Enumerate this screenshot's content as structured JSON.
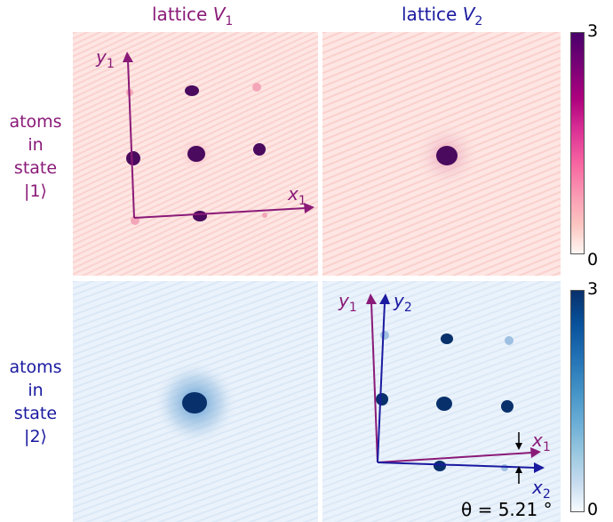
{
  "columns": [
    {
      "prefix": "lattice ",
      "var": "V",
      "sub": "1",
      "color": "#8a1a78"
    },
    {
      "prefix": "lattice ",
      "var": "V",
      "sub": "2",
      "color": "#1a1aa0"
    }
  ],
  "rows": [
    {
      "lines": [
        "atoms",
        "in",
        "state",
        "|1⟩"
      ],
      "color": "#8a1a78"
    },
    {
      "lines": [
        "atoms",
        "in",
        "state",
        "|2⟩"
      ],
      "color": "#1a1aa0"
    }
  ],
  "colorbars": [
    {
      "max": "3",
      "min": "0",
      "colormap": "RdPu"
    },
    {
      "max": "3",
      "min": "0",
      "colormap": "Blues"
    }
  ],
  "axes": {
    "lattice1": {
      "x_var": "x",
      "x_sub": "1",
      "y_var": "y",
      "y_sub": "1",
      "color": "#8a1a78"
    },
    "lattice2": {
      "x_var": "x",
      "x_sub": "2",
      "y_var": "y",
      "y_sub": "2",
      "color": "#1a1aa0"
    }
  },
  "angle_label": "θ = 5.21 °"
}
